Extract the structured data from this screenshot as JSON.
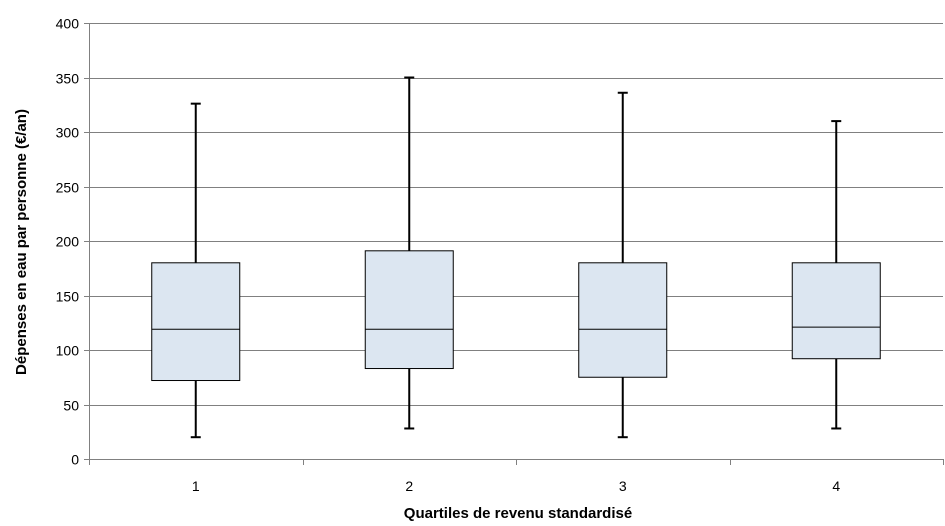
{
  "chart_data": {
    "type": "boxplot",
    "xlabel": "Quartiles de revenu standardisé",
    "ylabel": "Dépenses en eau par personne (€/an)",
    "ylim": [
      0,
      400
    ],
    "y_ticks": [
      0,
      50,
      100,
      150,
      200,
      250,
      300,
      350,
      400
    ],
    "grid": "horizontal",
    "categories": [
      "1",
      "2",
      "3",
      "4"
    ],
    "boxes": [
      {
        "category": "1",
        "min": 20,
        "q1": 72,
        "median": 119,
        "q3": 180,
        "max": 326
      },
      {
        "category": "2",
        "min": 28,
        "q1": 83,
        "median": 119,
        "q3": 191,
        "max": 350
      },
      {
        "category": "3",
        "min": 20,
        "q1": 75,
        "median": 119,
        "q3": 180,
        "max": 336
      },
      {
        "category": "4",
        "min": 28,
        "q1": 92,
        "median": 121,
        "q3": 180,
        "max": 310
      }
    ],
    "colors": {
      "box_fill": "#dce6f1",
      "box_stroke": "#000000",
      "grid": "#808080",
      "axis": "#808080"
    }
  }
}
